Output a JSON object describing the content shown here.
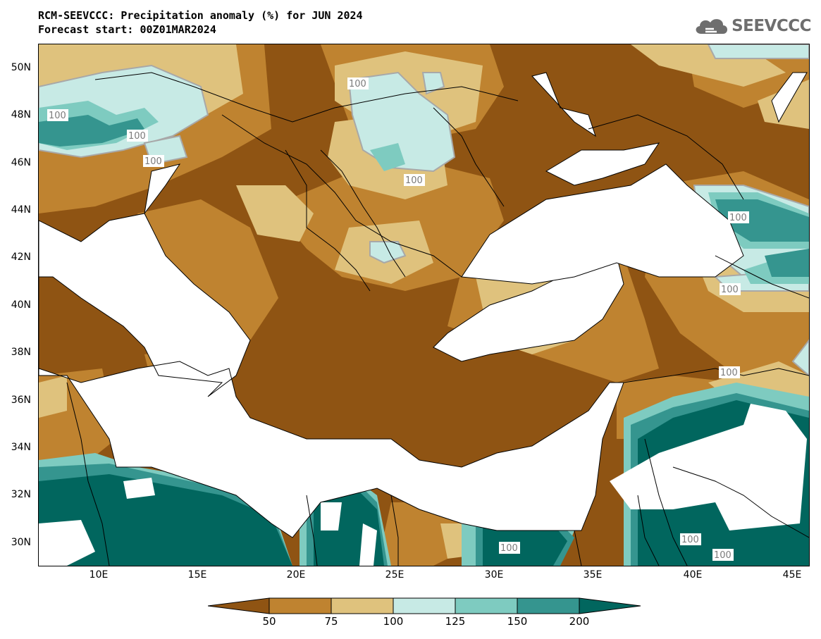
{
  "header": {
    "title_line1": "RCM-SEEVCCC: Precipitation anomaly (%) for JUN 2024",
    "title_line2": "Forecast start: 00Z01MAR2024"
  },
  "logo": {
    "text": "SEEVCCC",
    "icon": "cloud-icon"
  },
  "map": {
    "latitude_labels": [
      "50N",
      "48N",
      "46N",
      "44N",
      "42N",
      "40N",
      "38N",
      "36N",
      "34N",
      "32N",
      "30N"
    ],
    "longitude_labels": [
      "10E",
      "15E",
      "20E",
      "25E",
      "30E",
      "35E",
      "40E",
      "45E"
    ],
    "contour_value_label": "100",
    "colors": {
      "sea": "#ffffff",
      "below_50": "#8f5413",
      "from_50_to_75": "#bf8330",
      "from_75_to_100": "#dfc27d",
      "from_100_to_125": "#c7eae5",
      "from_125_to_150": "#7ecbc0",
      "from_150_to_200": "#35958f",
      "above_200": "#01665e",
      "contour_100": "#a8a8a8",
      "borders": "#000000"
    }
  },
  "colorbar": {
    "tick_labels": [
      "50",
      "75",
      "100",
      "125",
      "150",
      "200"
    ],
    "colors": [
      "#8f5413",
      "#bf8330",
      "#dfc27d",
      "#c7eae5",
      "#7ecbc0",
      "#35958f",
      "#01665e"
    ]
  }
}
